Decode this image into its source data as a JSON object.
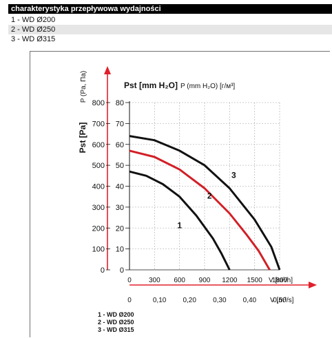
{
  "header": "charakterystyka przepływowa wydajności",
  "spec_rows": [
    "1 - WD Ø200",
    "2 - WD Ø250",
    "3 - WD Ø315"
  ],
  "colors": {
    "curve_1": "#111111",
    "curve_2": "#d21f26",
    "curve_3": "#111111",
    "arrow": "#e0202a",
    "grid": "#bdbdbd"
  },
  "chart_data": {
    "type": "line",
    "x_axis_m3h": {
      "ticks": [
        0,
        300,
        600,
        900,
        1200,
        1500,
        1800
      ],
      "unit_label": "V [m³/h]",
      "range": [
        0,
        1800
      ]
    },
    "x_axis_m3s": {
      "ticks": [
        "0",
        "0,10",
        "0,20",
        "0,30",
        "0,40",
        "0,50"
      ],
      "unit_label": "V [m³/s]"
    },
    "y_axis_pa": {
      "ticks": [
        0,
        100,
        200,
        300,
        400,
        500,
        600,
        700,
        800
      ],
      "label": "Pst [Pa]",
      "secondary_label": "P (Pa, Па)"
    },
    "y_axis_mmh2o": {
      "ticks": [
        0,
        10,
        20,
        30,
        40,
        50,
        60,
        70,
        80
      ],
      "label": "Pst [mm H2O]",
      "secondary_label": "P (mm H2O) [г/м³]",
      "range": [
        0,
        80
      ]
    },
    "series": [
      {
        "name": "1",
        "x": [
          0,
          200,
          400,
          600,
          800,
          1000,
          1100,
          1200
        ],
        "y": [
          47,
          45,
          41,
          35,
          26,
          15,
          8,
          0
        ]
      },
      {
        "name": "2",
        "x": [
          0,
          300,
          600,
          900,
          1200,
          1400,
          1550,
          1680
        ],
        "y": [
          57,
          54,
          48,
          39,
          27,
          17,
          9,
          0
        ]
      },
      {
        "name": "3",
        "x": [
          0,
          300,
          600,
          900,
          1200,
          1500,
          1700,
          1800
        ],
        "y": [
          64,
          62,
          57,
          50,
          39,
          24,
          11,
          0
        ]
      }
    ],
    "legend_lines": [
      "1 - WD Ø200",
      "2 - WD Ø250",
      "3 - WD Ø315"
    ],
    "grid": true
  }
}
